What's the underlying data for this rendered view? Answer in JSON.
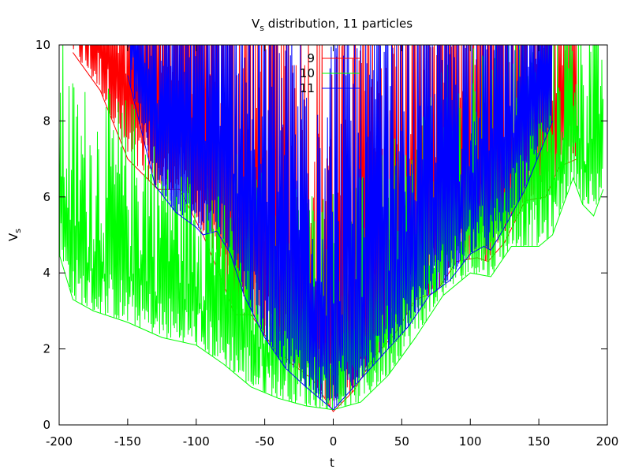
{
  "chart_data": {
    "type": "line",
    "title": "V distribution, 11 particles",
    "title_parts": {
      "prefix": "V",
      "subscript": "s",
      "suffix": " distribution, 11 particles"
    },
    "xlabel": "t",
    "ylabel": "V",
    "ylabel_subscript": "s",
    "xlim": [
      -200,
      200
    ],
    "ylim": [
      0,
      10
    ],
    "xticks": [
      -200,
      -150,
      -100,
      -50,
      0,
      50,
      100,
      150,
      200
    ],
    "yticks": [
      0,
      2,
      4,
      6,
      8,
      10
    ],
    "xtick_labels": [
      "-200",
      "-150",
      "-100",
      "-50",
      "0",
      "50",
      "100",
      "150",
      "200"
    ],
    "ytick_labels": [
      "0",
      "2",
      "4",
      "6",
      "8",
      "10"
    ],
    "grid": false,
    "legend_position": "top-center",
    "series": [
      {
        "name": "9",
        "color": "#ff0000",
        "envelope": {
          "t": [
            -190,
            -170,
            -150,
            -128,
            -112,
            -95,
            -80,
            -72,
            -60,
            -45,
            -30,
            -15,
            0,
            15,
            30,
            45,
            60,
            75,
            90,
            105,
            113,
            125,
            140,
            155,
            165,
            178
          ],
          "lower": [
            9.8,
            8.8,
            7.0,
            6.2,
            6.2,
            5.0,
            3.7,
            2.9,
            2.9,
            2.1,
            1.6,
            1.2,
            0.35,
            0.9,
            1.8,
            2.4,
            3.3,
            3.5,
            4.3,
            4.4,
            4.3,
            4.8,
            5.9,
            6.0,
            6.8,
            7.0
          ]
        }
      },
      {
        "name": "10",
        "color": "#00ff00",
        "envelope": {
          "t": [
            -200,
            -190,
            -175,
            -150,
            -125,
            -100,
            -80,
            -60,
            -40,
            -20,
            0,
            20,
            40,
            60,
            80,
            100,
            115,
            130,
            150,
            160,
            175,
            182,
            190,
            197
          ],
          "lower": [
            4.5,
            3.3,
            3.0,
            2.7,
            2.3,
            2.1,
            1.6,
            1.0,
            0.7,
            0.5,
            0.4,
            0.6,
            1.3,
            2.3,
            3.4,
            4.0,
            3.9,
            4.7,
            4.7,
            5.0,
            6.5,
            5.8,
            5.5,
            6.2
          ]
        }
      },
      {
        "name": "11",
        "color": "#0000ff",
        "envelope": {
          "t": [
            -150,
            -130,
            -115,
            -100,
            -95,
            -85,
            -75,
            -65,
            -50,
            -35,
            -20,
            -10,
            0,
            10,
            25,
            40,
            55,
            70,
            85,
            100,
            110,
            115,
            125,
            140,
            160
          ],
          "lower": [
            9.2,
            6.3,
            5.6,
            5.2,
            5.0,
            5.1,
            4.5,
            3.4,
            2.3,
            1.5,
            1.0,
            0.7,
            0.4,
            0.8,
            1.4,
            2.0,
            2.6,
            3.4,
            3.8,
            4.5,
            4.7,
            4.6,
            5.2,
            6.2,
            8.0
          ]
        }
      }
    ]
  }
}
